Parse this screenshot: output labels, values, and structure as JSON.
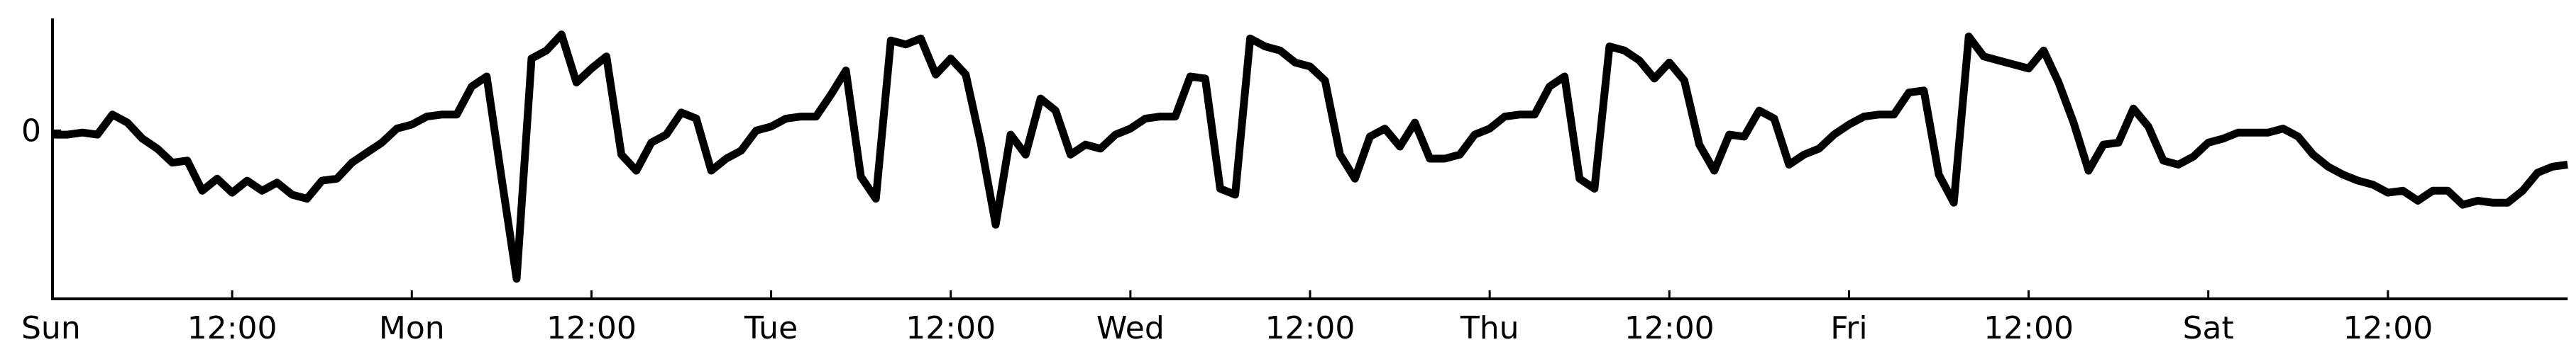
{
  "chart_data": {
    "type": "line",
    "title": "",
    "xlabel": "",
    "ylabel": "",
    "x_unit": "hours since Sunday 00:00",
    "xlim": [
      0,
      168
    ],
    "ylim": [
      -4.2,
      2.8
    ],
    "x_ticks": [
      {
        "value": 0,
        "label": "Sun"
      },
      {
        "value": 12,
        "label": "12:00"
      },
      {
        "value": 24,
        "label": "Mon"
      },
      {
        "value": 36,
        "label": "12:00"
      },
      {
        "value": 48,
        "label": "Tue"
      },
      {
        "value": 60,
        "label": "12:00"
      },
      {
        "value": 72,
        "label": "Wed"
      },
      {
        "value": 84,
        "label": "12:00"
      },
      {
        "value": 96,
        "label": "Thu"
      },
      {
        "value": 108,
        "label": "12:00"
      },
      {
        "value": 120,
        "label": "Fri"
      },
      {
        "value": 132,
        "label": "12:00"
      },
      {
        "value": 144,
        "label": "Sat"
      },
      {
        "value": 156,
        "label": "12:00"
      }
    ],
    "y_ticks": [
      {
        "value": 0,
        "label": "0"
      }
    ],
    "grid": false,
    "series": [
      {
        "name": "",
        "color": "#000000",
        "points": [
          [
            0,
            -0.1
          ],
          [
            1,
            -0.1
          ],
          [
            2,
            -0.05
          ],
          [
            3,
            -0.1
          ],
          [
            4,
            0.4
          ],
          [
            5,
            0.2
          ],
          [
            6,
            -0.2
          ],
          [
            7,
            -0.45
          ],
          [
            8,
            -0.8
          ],
          [
            9,
            -0.75
          ],
          [
            10,
            -1.5
          ],
          [
            11,
            -1.2
          ],
          [
            12,
            -1.55
          ],
          [
            13,
            -1.25
          ],
          [
            14,
            -1.5
          ],
          [
            15,
            -1.3
          ],
          [
            16,
            -1.6
          ],
          [
            17,
            -1.7
          ],
          [
            18,
            -1.25
          ],
          [
            19,
            -1.2
          ],
          [
            20,
            -0.8
          ],
          [
            21,
            -0.55
          ],
          [
            22,
            -0.3
          ],
          [
            23,
            0.05
          ],
          [
            24,
            0.15
          ],
          [
            25,
            0.35
          ],
          [
            26,
            0.4
          ],
          [
            27,
            0.4
          ],
          [
            28,
            1.1
          ],
          [
            29,
            1.35
          ],
          [
            30,
            -1.2
          ],
          [
            31,
            -3.7
          ],
          [
            32,
            1.8
          ],
          [
            33,
            2.0
          ],
          [
            34,
            2.4
          ],
          [
            35,
            1.2
          ],
          [
            36,
            1.55
          ],
          [
            37,
            1.85
          ],
          [
            38,
            -0.6
          ],
          [
            39,
            -1.0
          ],
          [
            40,
            -0.3
          ],
          [
            41,
            -0.1
          ],
          [
            42,
            0.45
          ],
          [
            43,
            0.3
          ],
          [
            44,
            -1.0
          ],
          [
            45,
            -0.7
          ],
          [
            46,
            -0.5
          ],
          [
            47,
            0.0
          ],
          [
            48,
            0.1
          ],
          [
            49,
            0.3
          ],
          [
            50,
            0.35
          ],
          [
            51,
            0.35
          ],
          [
            52,
            0.9
          ],
          [
            53,
            1.5
          ],
          [
            54,
            -1.15
          ],
          [
            55,
            -1.7
          ],
          [
            56,
            2.25
          ],
          [
            57,
            2.15
          ],
          [
            58,
            2.3
          ],
          [
            59,
            1.4
          ],
          [
            60,
            1.8
          ],
          [
            61,
            1.4
          ],
          [
            62,
            -0.3
          ],
          [
            63,
            -2.35
          ],
          [
            64,
            -0.1
          ],
          [
            65,
            -0.6
          ],
          [
            66,
            0.8
          ],
          [
            67,
            0.5
          ],
          [
            68,
            -0.6
          ],
          [
            69,
            -0.35
          ],
          [
            70,
            -0.45
          ],
          [
            71,
            -0.1
          ],
          [
            72,
            0.05
          ],
          [
            73,
            0.3
          ],
          [
            74,
            0.35
          ],
          [
            75,
            0.35
          ],
          [
            76,
            1.35
          ],
          [
            77,
            1.3
          ],
          [
            78,
            -1.45
          ],
          [
            79,
            -1.6
          ],
          [
            80,
            2.3
          ],
          [
            81,
            2.1
          ],
          [
            82,
            2.0
          ],
          [
            83,
            1.7
          ],
          [
            84,
            1.6
          ],
          [
            85,
            1.25
          ],
          [
            86,
            -0.6
          ],
          [
            87,
            -1.2
          ],
          [
            88,
            -0.15
          ],
          [
            89,
            0.05
          ],
          [
            90,
            -0.4
          ],
          [
            91,
            0.2
          ],
          [
            92,
            -0.7
          ],
          [
            93,
            -0.7
          ],
          [
            94,
            -0.6
          ],
          [
            95,
            -0.1
          ],
          [
            96,
            0.05
          ],
          [
            97,
            0.35
          ],
          [
            98,
            0.4
          ],
          [
            99,
            0.4
          ],
          [
            100,
            1.1
          ],
          [
            101,
            1.35
          ],
          [
            102,
            -1.2
          ],
          [
            103,
            -1.45
          ],
          [
            104,
            2.1
          ],
          [
            105,
            2.0
          ],
          [
            106,
            1.75
          ],
          [
            107,
            1.3
          ],
          [
            108,
            1.7
          ],
          [
            109,
            1.25
          ],
          [
            110,
            -0.35
          ],
          [
            111,
            -1.0
          ],
          [
            112,
            -0.1
          ],
          [
            113,
            -0.15
          ],
          [
            114,
            0.5
          ],
          [
            115,
            0.3
          ],
          [
            116,
            -0.85
          ],
          [
            117,
            -0.6
          ],
          [
            118,
            -0.45
          ],
          [
            119,
            -0.1
          ],
          [
            120,
            0.15
          ],
          [
            121,
            0.35
          ],
          [
            122,
            0.4
          ],
          [
            123,
            0.4
          ],
          [
            124,
            0.95
          ],
          [
            125,
            1.0
          ],
          [
            126,
            -1.1
          ],
          [
            127,
            -1.8
          ],
          [
            128,
            2.35
          ],
          [
            129,
            1.85
          ],
          [
            130,
            1.75
          ],
          [
            131,
            1.65
          ],
          [
            132,
            1.55
          ],
          [
            133,
            2.0
          ],
          [
            134,
            1.2
          ],
          [
            135,
            0.2
          ],
          [
            136,
            -1.0
          ],
          [
            137,
            -0.35
          ],
          [
            138,
            -0.3
          ],
          [
            139,
            0.55
          ],
          [
            140,
            0.1
          ],
          [
            141,
            -0.75
          ],
          [
            142,
            -0.85
          ],
          [
            143,
            -0.65
          ],
          [
            144,
            -0.3
          ],
          [
            145,
            -0.2
          ],
          [
            146,
            -0.05
          ],
          [
            147,
            -0.05
          ],
          [
            148,
            -0.05
          ],
          [
            149,
            0.05
          ],
          [
            150,
            -0.15
          ],
          [
            151,
            -0.6
          ],
          [
            152,
            -0.9
          ],
          [
            153,
            -1.1
          ],
          [
            154,
            -1.25
          ],
          [
            155,
            -1.35
          ],
          [
            156,
            -1.55
          ],
          [
            157,
            -1.5
          ],
          [
            158,
            -1.75
          ],
          [
            159,
            -1.5
          ],
          [
            160,
            -1.5
          ],
          [
            161,
            -1.85
          ],
          [
            162,
            -1.75
          ],
          [
            163,
            -1.8
          ],
          [
            164,
            -1.8
          ],
          [
            165,
            -1.5
          ],
          [
            166,
            -1.05
          ],
          [
            167,
            -0.9
          ],
          [
            168,
            -0.85
          ]
        ]
      }
    ]
  }
}
